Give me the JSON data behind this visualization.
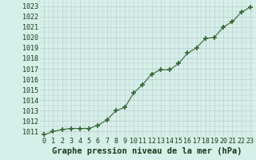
{
  "x": [
    0,
    1,
    2,
    3,
    4,
    5,
    6,
    7,
    8,
    9,
    10,
    11,
    12,
    13,
    14,
    15,
    16,
    17,
    18,
    19,
    20,
    21,
    22,
    23
  ],
  "y": [
    1010.7,
    1011.0,
    1011.2,
    1011.3,
    1011.3,
    1011.3,
    1011.6,
    1012.1,
    1013.0,
    1013.3,
    1014.7,
    1015.5,
    1016.5,
    1016.9,
    1016.9,
    1017.5,
    1018.5,
    1019.0,
    1019.9,
    1020.0,
    1021.0,
    1021.5,
    1022.4,
    1022.9
  ],
  "line_color": "#336633",
  "marker_color": "#336633",
  "bg_color": "#d5f0e8",
  "grid_color_major": "#c0c8d0",
  "grid_color_minor": "#c0c8d0",
  "outer_bg": "#d5f0e8",
  "title": "Graphe pression niveau de la mer (hPa)",
  "ylim_min": 1010.5,
  "ylim_max": 1023.5,
  "yticks": [
    1011,
    1012,
    1013,
    1014,
    1015,
    1016,
    1017,
    1018,
    1019,
    1020,
    1021,
    1022,
    1023
  ],
  "xticks": [
    0,
    1,
    2,
    3,
    4,
    5,
    6,
    7,
    8,
    9,
    10,
    11,
    12,
    13,
    14,
    15,
    16,
    17,
    18,
    19,
    20,
    21,
    22,
    23
  ],
  "title_fontsize": 7.5,
  "tick_fontsize": 6.0,
  "title_color": "#1a3a1a",
  "tick_color": "#1a3a1a"
}
